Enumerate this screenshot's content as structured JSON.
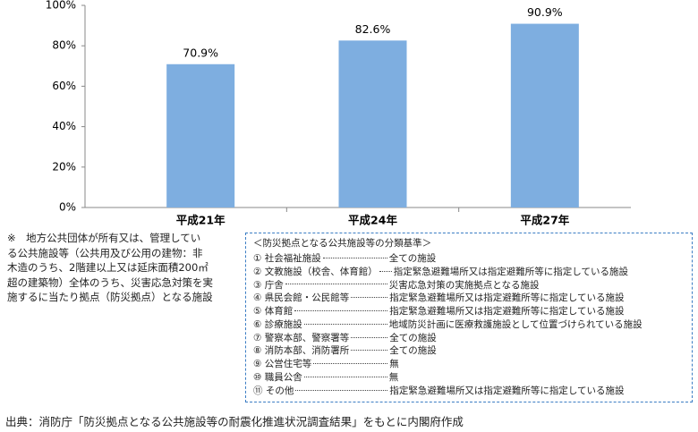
{
  "chart_data": {
    "type": "bar",
    "categories": [
      "平成21年",
      "平成24年",
      "平成27年"
    ],
    "values": [
      70.9,
      82.6,
      90.9
    ],
    "value_labels": [
      "70.9%",
      "82.6%",
      "90.9%"
    ],
    "color": "#7eaee0",
    "ylim": [
      0,
      100
    ],
    "yticks": [
      {
        "value": 0,
        "label": "0%"
      },
      {
        "value": 20,
        "label": "20%"
      },
      {
        "value": 40,
        "label": "40%"
      },
      {
        "value": 60,
        "label": "60%"
      },
      {
        "value": 80,
        "label": "80%"
      },
      {
        "value": 100,
        "label": "100%"
      }
    ],
    "grid": false
  },
  "note": {
    "lines": [
      "※　地方公共団体が所有又は、管理してい",
      "る公共施設等（公共用及び公用の建物：非",
      "木造のうち、2階建以上又は延床面積200㎡",
      "超の建築物）全体のうち、災害応急対策を実",
      "施するに当たり拠点（防災拠点）となる施設"
    ]
  },
  "criteria": {
    "heading": "＜防災拠点となる公共施設等の分類基準＞",
    "items": [
      {
        "name": "① 社会福祉施設",
        "criterion": "全ての施設"
      },
      {
        "name": "② 文教施設（校舎、体育館）",
        "criterion": "指定緊急避難場所又は指定避難所等に指定している施設"
      },
      {
        "name": "③ 庁舎",
        "criterion": "災害応急対策の実施拠点となる施設"
      },
      {
        "name": "④ 県民会館・公民館等",
        "criterion": "指定緊急避難場所又は指定避難所等に指定している施設"
      },
      {
        "name": "⑤ 体育館",
        "criterion": "指定緊急避難場所又は指定避難所等に指定している施設"
      },
      {
        "name": "⑥ 診療施設",
        "criterion": "地域防災計画に医療救護施設として位置づけられている施設"
      },
      {
        "name": "⑦ 警察本部、警察署等",
        "criterion": "全ての施設"
      },
      {
        "name": "⑧ 消防本部、消防署所",
        "criterion": "全ての施設"
      },
      {
        "name": "⑨ 公営住宅等",
        "criterion": "無"
      },
      {
        "name": "⑩ 職員公舎",
        "criterion": "無"
      },
      {
        "name": "⑪ その他",
        "criterion": "指定緊急避難場所又は指定避難所等に指定している施設"
      }
    ]
  },
  "source": "出典：消防庁「防災拠点となる公共施設等の耐震化推進状況調査結果」をもとに内閣府作成"
}
